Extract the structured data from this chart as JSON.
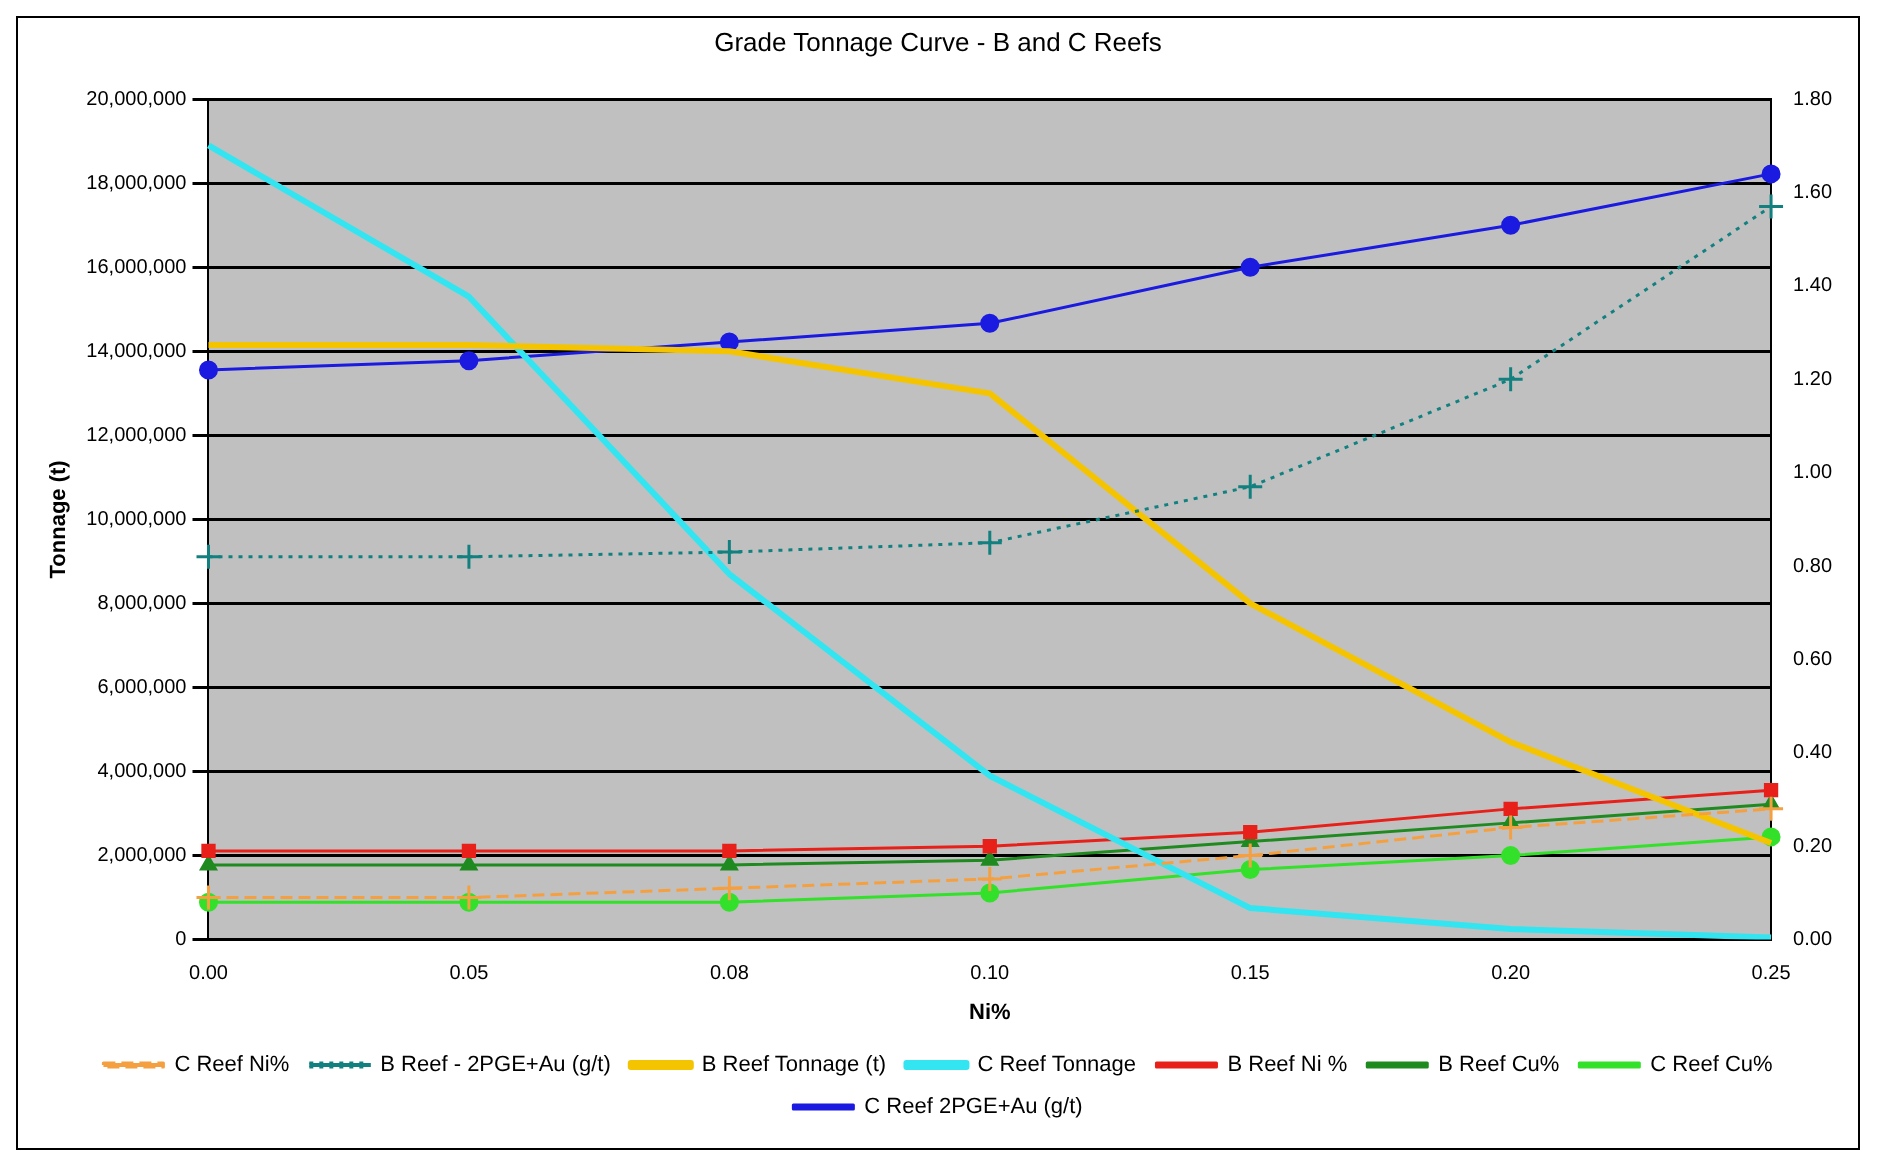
{
  "chart_data": {
    "type": "line",
    "title": "Grade Tonnage Curve - B and C Reefs",
    "xlabel": "Ni%",
    "ylabel": "Tonnage (t)",
    "categories": [
      "0.00",
      "0.05",
      "0.08",
      "0.10",
      "0.15",
      "0.20",
      "0.25"
    ],
    "ylim": [
      0,
      20000000
    ],
    "yticks": [
      {
        "value": 0,
        "label": "0"
      },
      {
        "value": 2000000,
        "label": "2,000,000"
      },
      {
        "value": 4000000,
        "label": "4,000,000"
      },
      {
        "value": 6000000,
        "label": "6,000,000"
      },
      {
        "value": 8000000,
        "label": "8,000,000"
      },
      {
        "value": 10000000,
        "label": "10,000,000"
      },
      {
        "value": 12000000,
        "label": "12,000,000"
      },
      {
        "value": 14000000,
        "label": "14,000,000"
      },
      {
        "value": 16000000,
        "label": "16,000,000"
      },
      {
        "value": 18000000,
        "label": "18,000,000"
      },
      {
        "value": 20000000,
        "label": "20,000,000"
      }
    ],
    "y2lim": [
      0,
      1.8
    ],
    "y2ticks": [
      {
        "value": 0,
        "label": "0.00"
      },
      {
        "value": 0.2,
        "label": "0.20"
      },
      {
        "value": 0.4,
        "label": "0.40"
      },
      {
        "value": 0.6,
        "label": "0.60"
      },
      {
        "value": 0.8,
        "label": "0.80"
      },
      {
        "value": 1,
        "label": "1.00"
      },
      {
        "value": 1.2,
        "label": "1.20"
      },
      {
        "value": 1.4,
        "label": "1.40"
      },
      {
        "value": 1.6,
        "label": "1.60"
      },
      {
        "value": 1.8,
        "label": "1.80"
      }
    ],
    "grid": "y",
    "legend": "bottom",
    "series": [
      {
        "name": "B Reef Tonnage (t)",
        "color": "#f5c400",
        "marker": "none",
        "values": [
          14150000,
          14150000,
          14000000,
          13000000,
          8000000,
          4700000,
          2300000
        ]
      },
      {
        "name": "C Reef Tonnage",
        "color": "#33e5f0",
        "marker": "none",
        "values": [
          18900000,
          15300000,
          8700000,
          3900000,
          750000,
          250000,
          50000
        ]
      },
      {
        "name": "B Reef Ni %",
        "color": "#e8201a",
        "marker": "square",
        "axis": "y2",
        "values": [
          0.19,
          0.19,
          0.19,
          0.2,
          0.23,
          0.28,
          0.32
        ]
      },
      {
        "name": "B Reef Cu%",
        "color": "#1f8a1f",
        "marker": "triangle",
        "axis": "y2",
        "values": [
          0.16,
          0.16,
          0.16,
          0.17,
          0.21,
          0.25,
          0.29
        ]
      },
      {
        "name": "C Reef Ni%",
        "color": "#f5a040",
        "marker": "cross",
        "line_style": "dashed",
        "axis": "y2",
        "values": [
          0.09,
          0.09,
          0.11,
          0.13,
          0.18,
          0.24,
          0.28
        ]
      },
      {
        "name": "C Reef Cu%",
        "color": "#33e02a",
        "marker": "circle",
        "axis": "y2",
        "values": [
          0.08,
          0.08,
          0.08,
          0.1,
          0.15,
          0.18,
          0.22
        ]
      },
      {
        "name": "B Reef - 2PGE+Au (g/t)",
        "color": "#138080",
        "marker": "cross",
        "line_style": "dotted",
        "axis": "y2",
        "values": [
          0.82,
          0.82,
          0.83,
          0.85,
          0.97,
          1.2,
          1.57
        ]
      },
      {
        "name": "C Reef 2PGE+Au (g/t)",
        "color": "#1a1ae0",
        "marker": "circle",
        "axis": "y2",
        "values": [
          1.22,
          1.24,
          1.28,
          1.32,
          1.44,
          1.53,
          1.64
        ]
      }
    ]
  }
}
